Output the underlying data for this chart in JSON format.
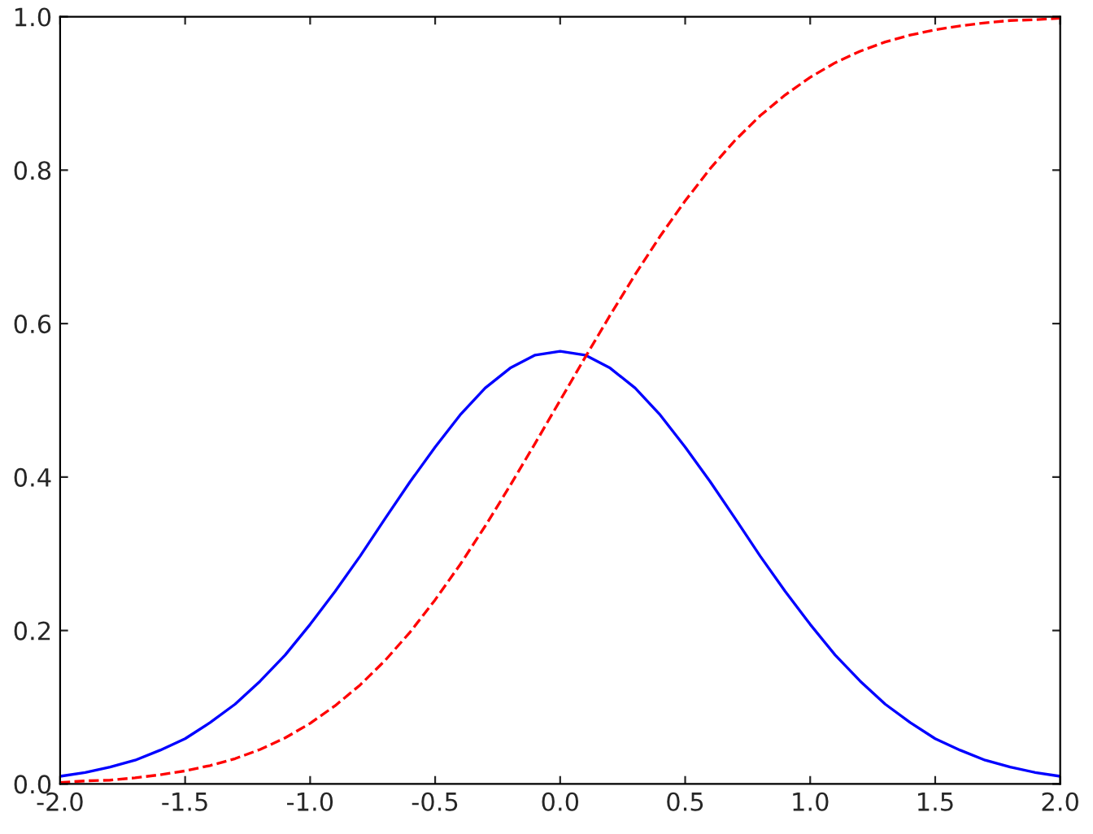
{
  "chart_data": {
    "type": "line",
    "x": [
      -2.0,
      -1.9,
      -1.8,
      -1.7,
      -1.6,
      -1.5,
      -1.4,
      -1.3,
      -1.2,
      -1.1,
      -1.0,
      -0.9,
      -0.8,
      -0.7,
      -0.6,
      -0.5,
      -0.4,
      -0.3,
      -0.2,
      -0.1,
      0.0,
      0.1,
      0.2,
      0.3,
      0.4,
      0.5,
      0.6,
      0.7,
      0.8,
      0.9,
      1.0,
      1.1,
      1.2,
      1.3,
      1.4,
      1.5,
      1.6,
      1.7,
      1.8,
      1.9,
      2.0
    ],
    "series": [
      {
        "color": "#0000ff",
        "line_style": "solid",
        "values": [
          0.01,
          0.015,
          0.022,
          0.031,
          0.044,
          0.059,
          0.08,
          0.104,
          0.134,
          0.168,
          0.208,
          0.251,
          0.297,
          0.346,
          0.394,
          0.439,
          0.481,
          0.516,
          0.542,
          0.559,
          0.564,
          0.559,
          0.542,
          0.516,
          0.481,
          0.439,
          0.394,
          0.346,
          0.297,
          0.251,
          0.208,
          0.168,
          0.134,
          0.104,
          0.08,
          0.059,
          0.044,
          0.031,
          0.022,
          0.015,
          0.01
        ]
      },
      {
        "color": "#ff0000",
        "line_style": "dashed",
        "values": [
          0.002,
          0.004,
          0.005,
          0.008,
          0.012,
          0.017,
          0.024,
          0.033,
          0.045,
          0.06,
          0.079,
          0.102,
          0.129,
          0.161,
          0.198,
          0.24,
          0.286,
          0.336,
          0.389,
          0.444,
          0.5,
          0.556,
          0.611,
          0.664,
          0.714,
          0.76,
          0.802,
          0.839,
          0.871,
          0.898,
          0.921,
          0.94,
          0.955,
          0.967,
          0.976,
          0.983,
          0.988,
          0.992,
          0.995,
          0.996,
          0.998
        ]
      }
    ],
    "xlim": [
      -2.0,
      2.0
    ],
    "ylim": [
      0.0,
      1.0
    ],
    "xticks": [
      {
        "value": -2.0,
        "label": "-2.0"
      },
      {
        "value": -1.5,
        "label": "-1.5"
      },
      {
        "value": -1.0,
        "label": "-1.0"
      },
      {
        "value": -0.5,
        "label": "-0.5"
      },
      {
        "value": 0.0,
        "label": "0.0"
      },
      {
        "value": 0.5,
        "label": "0.5"
      },
      {
        "value": 1.0,
        "label": "1.0"
      },
      {
        "value": 1.5,
        "label": "1.5"
      },
      {
        "value": 2.0,
        "label": "2.0"
      }
    ],
    "yticks": [
      {
        "value": 0.0,
        "label": "0.0"
      },
      {
        "value": 0.2,
        "label": "0.2"
      },
      {
        "value": 0.4,
        "label": "0.4"
      },
      {
        "value": 0.6,
        "label": "0.6"
      },
      {
        "value": 0.8,
        "label": "0.8"
      },
      {
        "value": 1.0,
        "label": "1.0"
      }
    ],
    "grid": false,
    "marker": "none"
  }
}
